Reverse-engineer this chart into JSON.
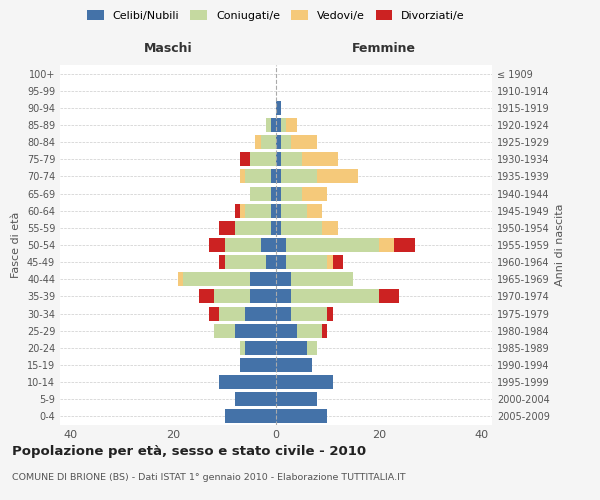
{
  "age_groups": [
    "0-4",
    "5-9",
    "10-14",
    "15-19",
    "20-24",
    "25-29",
    "30-34",
    "35-39",
    "40-44",
    "45-49",
    "50-54",
    "55-59",
    "60-64",
    "65-69",
    "70-74",
    "75-79",
    "80-84",
    "85-89",
    "90-94",
    "95-99",
    "100+"
  ],
  "birth_years": [
    "2005-2009",
    "2000-2004",
    "1995-1999",
    "1990-1994",
    "1985-1989",
    "1980-1984",
    "1975-1979",
    "1970-1974",
    "1965-1969",
    "1960-1964",
    "1955-1959",
    "1950-1954",
    "1945-1949",
    "1940-1944",
    "1935-1939",
    "1930-1934",
    "1925-1929",
    "1920-1924",
    "1915-1919",
    "1910-1914",
    "≤ 1909"
  ],
  "maschi": {
    "celibi": [
      10,
      8,
      11,
      7,
      6,
      8,
      6,
      5,
      5,
      2,
      3,
      1,
      1,
      1,
      1,
      0,
      0,
      1,
      0,
      0,
      0
    ],
    "coniugati": [
      0,
      0,
      0,
      0,
      1,
      4,
      5,
      7,
      13,
      8,
      7,
      7,
      5,
      4,
      5,
      5,
      3,
      1,
      0,
      0,
      0
    ],
    "vedovi": [
      0,
      0,
      0,
      0,
      0,
      0,
      0,
      0,
      1,
      0,
      0,
      0,
      1,
      0,
      1,
      0,
      1,
      0,
      0,
      0,
      0
    ],
    "divorziati": [
      0,
      0,
      0,
      0,
      0,
      0,
      2,
      3,
      0,
      1,
      3,
      3,
      1,
      0,
      0,
      2,
      0,
      0,
      0,
      0,
      0
    ]
  },
  "femmine": {
    "nubili": [
      10,
      8,
      11,
      7,
      6,
      4,
      3,
      3,
      3,
      2,
      2,
      1,
      1,
      1,
      1,
      1,
      1,
      1,
      1,
      0,
      0
    ],
    "coniugate": [
      0,
      0,
      0,
      0,
      2,
      5,
      7,
      17,
      12,
      8,
      18,
      8,
      5,
      4,
      7,
      4,
      2,
      1,
      0,
      0,
      0
    ],
    "vedove": [
      0,
      0,
      0,
      0,
      0,
      0,
      0,
      0,
      0,
      1,
      3,
      3,
      3,
      5,
      8,
      7,
      5,
      2,
      0,
      0,
      0
    ],
    "divorziate": [
      0,
      0,
      0,
      0,
      0,
      1,
      1,
      4,
      0,
      2,
      4,
      0,
      0,
      0,
      0,
      0,
      0,
      0,
      0,
      0,
      0
    ]
  },
  "colors": {
    "celibi": "#4472a8",
    "coniugati": "#c5d9a0",
    "vedovi": "#f5c97a",
    "divorziati": "#cc2222"
  },
  "xlim": 42,
  "title": "Popolazione per età, sesso e stato civile - 2010",
  "subtitle": "COMUNE DI BRIONE (BS) - Dati ISTAT 1° gennaio 2010 - Elaborazione TUTTITALIA.IT",
  "xlabel_left": "Maschi",
  "xlabel_right": "Femmine",
  "ylabel_left": "Fasce di età",
  "ylabel_right": "Anni di nascita",
  "legend_labels": [
    "Celibi/Nubili",
    "Coniugati/e",
    "Vedovi/e",
    "Divorziati/e"
  ],
  "bg_color": "#f5f5f5",
  "plot_bg": "#ffffff"
}
